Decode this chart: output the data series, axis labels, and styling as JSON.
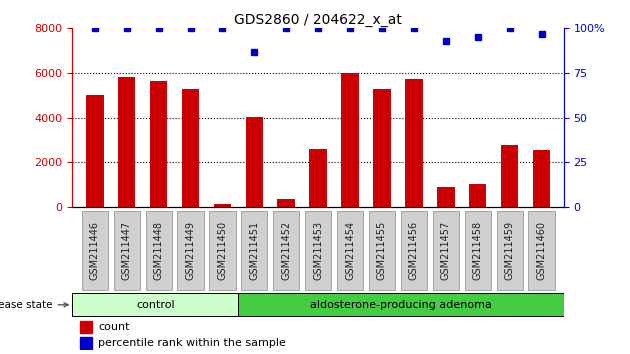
{
  "title": "GDS2860 / 204622_x_at",
  "samples": [
    "GSM211446",
    "GSM211447",
    "GSM211448",
    "GSM211449",
    "GSM211450",
    "GSM211451",
    "GSM211452",
    "GSM211453",
    "GSM211454",
    "GSM211455",
    "GSM211456",
    "GSM211457",
    "GSM211458",
    "GSM211459",
    "GSM211460"
  ],
  "counts": [
    5000,
    5800,
    5650,
    5300,
    130,
    4050,
    350,
    2600,
    6000,
    5300,
    5750,
    900,
    1050,
    2800,
    2550
  ],
  "percentiles": [
    100,
    100,
    100,
    100,
    100,
    87,
    100,
    100,
    100,
    100,
    100,
    93,
    95,
    100,
    97
  ],
  "ylim_left": [
    0,
    8000
  ],
  "ylim_right": [
    0,
    100
  ],
  "yticks_left": [
    0,
    2000,
    4000,
    6000,
    8000
  ],
  "yticks_right": [
    0,
    25,
    50,
    75,
    100
  ],
  "control_count": 5,
  "bar_color": "#cc0000",
  "dot_color": "#0000cc",
  "control_color": "#ccffcc",
  "adenoma_color": "#44cc44",
  "control_label": "control",
  "adenoma_label": "aldosterone-producing adenoma",
  "disease_state_label": "disease state",
  "legend_count": "count",
  "legend_percentile": "percentile rank within the sample",
  "left_axis_color": "#cc0000",
  "right_axis_color": "#0000cc",
  "tick_box_color": "#d0d0d0",
  "tick_box_edge": "#888888"
}
